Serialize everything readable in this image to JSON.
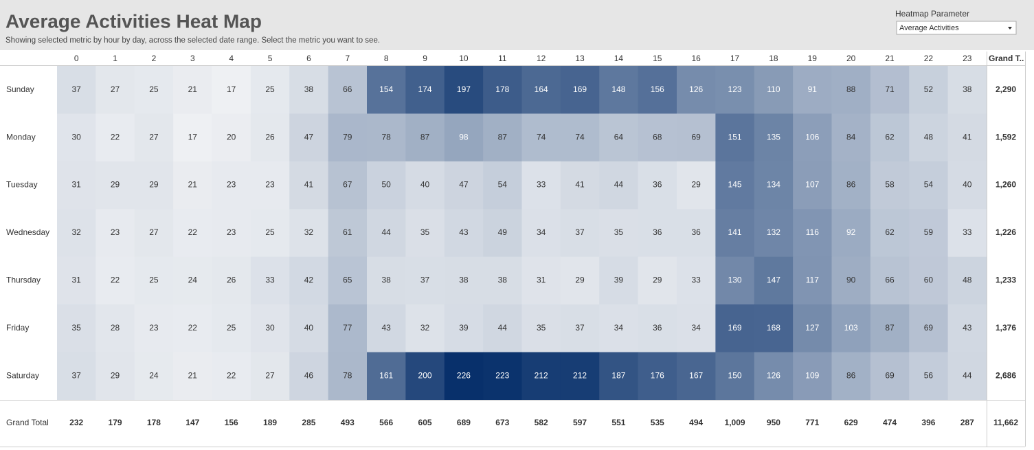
{
  "chart_data": {
    "type": "heatmap",
    "title": "Average Activities Heat Map",
    "subtitle": "Showing selected metric by hour by day, across the selected date range. Select the metric you want to see.",
    "parameter_label": "Heatmap Parameter",
    "parameter_value": "Average Activities",
    "x_categories": [
      "0",
      "1",
      "2",
      "3",
      "4",
      "5",
      "6",
      "7",
      "8",
      "9",
      "10",
      "11",
      "12",
      "13",
      "14",
      "15",
      "16",
      "17",
      "18",
      "19",
      "20",
      "21",
      "22",
      "23"
    ],
    "y_categories": [
      "Sunday",
      "Monday",
      "Tuesday",
      "Wednesday",
      "Thursday",
      "Friday",
      "Saturday"
    ],
    "values": [
      [
        37,
        27,
        25,
        21,
        17,
        25,
        38,
        66,
        154,
        174,
        197,
        178,
        164,
        169,
        148,
        156,
        126,
        123,
        110,
        91,
        88,
        71,
        52,
        38
      ],
      [
        30,
        22,
        27,
        17,
        20,
        26,
        47,
        79,
        78,
        87,
        98,
        87,
        74,
        74,
        64,
        68,
        69,
        151,
        135,
        106,
        84,
        62,
        48,
        41
      ],
      [
        31,
        29,
        29,
        21,
        23,
        23,
        41,
        67,
        50,
        40,
        47,
        54,
        33,
        41,
        44,
        36,
        29,
        145,
        134,
        107,
        86,
        58,
        54,
        40
      ],
      [
        32,
        23,
        27,
        22,
        23,
        25,
        32,
        61,
        44,
        35,
        43,
        49,
        34,
        37,
        35,
        36,
        36,
        141,
        132,
        116,
        92,
        62,
        59,
        33
      ],
      [
        31,
        22,
        25,
        24,
        26,
        33,
        42,
        65,
        38,
        37,
        38,
        38,
        31,
        29,
        39,
        29,
        33,
        130,
        147,
        117,
        90,
        66,
        60,
        48
      ],
      [
        35,
        28,
        23,
        22,
        25,
        30,
        40,
        77,
        43,
        32,
        39,
        44,
        35,
        37,
        34,
        36,
        34,
        169,
        168,
        127,
        103,
        87,
        69,
        43
      ],
      [
        37,
        29,
        24,
        21,
        22,
        27,
        46,
        78,
        161,
        200,
        226,
        223,
        212,
        212,
        187,
        176,
        167,
        150,
        126,
        109,
        86,
        69,
        56,
        44
      ]
    ],
    "colors": [
      "#eef0f3",
      "#08306b"
    ],
    "row_total_header": "Grand T..",
    "row_totals": {
      "values": [
        2290,
        1592,
        1260,
        1226,
        1233,
        1376,
        2686
      ],
      "value_labels": [
        "2,290",
        "1,592",
        "1,260",
        "1,226",
        "1,233",
        "1,376",
        "2,686"
      ]
    },
    "column_total_header": "Grand Total",
    "column_totals": {
      "values": [
        232,
        179,
        178,
        147,
        156,
        189,
        285,
        493,
        566,
        605,
        689,
        673,
        582,
        597,
        551,
        535,
        494,
        1009,
        950,
        771,
        629,
        474,
        396,
        287
      ],
      "value_labels": [
        "232",
        "179",
        "178",
        "147",
        "156",
        "189",
        "285",
        "493",
        "566",
        "605",
        "689",
        "673",
        "582",
        "597",
        "551",
        "535",
        "494",
        "1,009",
        "950",
        "771",
        "629",
        "474",
        "396",
        "287"
      ]
    },
    "grand_total": {
      "value": 11662,
      "label": "11,662"
    }
  }
}
